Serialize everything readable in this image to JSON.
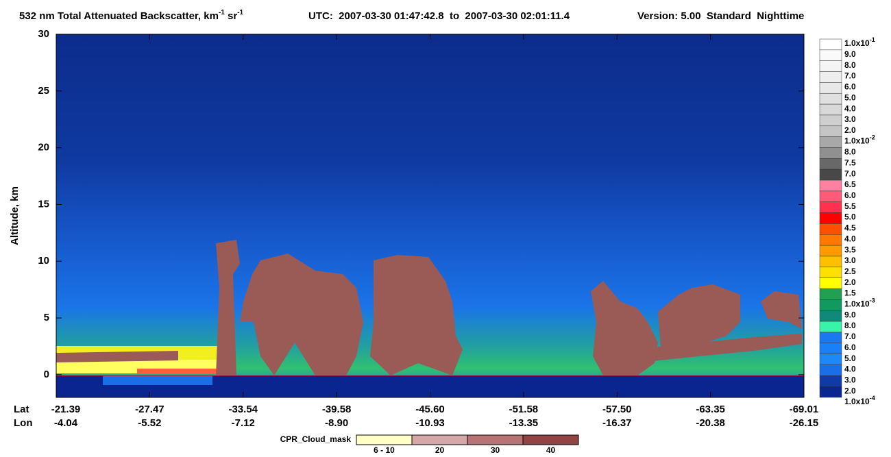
{
  "chart_data": {
    "type": "heatmap",
    "title_parts": [
      "532 nm Total Attenuated Backscatter, km",
      "-1",
      " sr",
      "-1"
    ],
    "time_range": "UTC:  2007-03-30 01:47:42.8  to  2007-03-30 02:01:11.4",
    "version": "Version: 5.00  Standard  Nighttime",
    "y_label": "Altitude, km",
    "ylim": [
      -2,
      30
    ],
    "yticks": [
      0,
      5,
      10,
      15,
      20,
      25,
      30
    ],
    "x_axes": [
      {
        "name": "Lat",
        "categories": [
          "-21.39",
          "-27.47",
          "-33.54",
          "-39.58",
          "-45.60",
          "-51.58",
          "-57.50",
          "-63.35",
          "-69.01"
        ]
      },
      {
        "name": "Lon",
        "categories": [
          "-4.04",
          "-5.52",
          "-7.12",
          "-8.90",
          "-10.93",
          "-13.35",
          "-16.37",
          "-20.38",
          "-26.15"
        ]
      }
    ],
    "colorbar": {
      "labels": [
        {
          "label": "1.0x10",
          "sup": "-1"
        },
        "9.0",
        "8.0",
        "7.0",
        "6.0",
        "5.0",
        "4.0",
        "3.0",
        "2.0",
        {
          "label": "1.0x10",
          "sup": "-2"
        },
        "8.0",
        "7.5",
        "7.0",
        "6.5",
        "6.0",
        "5.5",
        "5.0",
        "4.5",
        "4.0",
        "3.5",
        "3.0",
        "2.5",
        "2.0",
        "1.5",
        {
          "label": "1.0x10",
          "sup": "-3"
        },
        "9.0",
        "8.0",
        "7.0",
        "6.0",
        "5.0",
        "4.0",
        "3.0",
        "2.0",
        {
          "label": "1.0x10",
          "sup": "-4"
        }
      ],
      "colors": [
        "#ffffff",
        "#fafafa",
        "#f4f4f4",
        "#eeeeee",
        "#e8e8e8",
        "#e0e0e0",
        "#d8d8d8",
        "#cfcfcf",
        "#c4c4c4",
        "#a8a8a8",
        "#909090",
        "#686868",
        "#484848",
        "#ff80a0",
        "#ff5a78",
        "#ff3050",
        "#ff0000",
        "#ff5000",
        "#ff7800",
        "#ff9a00",
        "#ffc000",
        "#ffe000",
        "#ffff00",
        "#20a050",
        "#109a60",
        "#10887a",
        "#38f4a8",
        "#1a78f0",
        "#1a80f8",
        "#1e88f8",
        "#1a6ee8",
        "#103aa8",
        "#0a2590"
      ]
    },
    "cpr_legend": {
      "title": "CPR_Cloud_mask",
      "labels": [
        "6 - 10",
        "20",
        "30",
        "40"
      ],
      "colors": [
        "#ffffc8",
        "#d4a8a8",
        "#b87474",
        "#904444"
      ]
    }
  }
}
